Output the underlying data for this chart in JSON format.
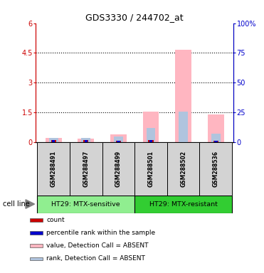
{
  "title": "GDS3330 / 244702_at",
  "samples": [
    "GSM288491",
    "GSM288497",
    "GSM288499",
    "GSM288501",
    "GSM288502",
    "GSM288536"
  ],
  "groups": [
    "HT29: MTX-sensitive",
    "HT29: MTX-resistant"
  ],
  "group_colors": [
    "#90ee90",
    "#32cd32"
  ],
  "ylim_left": [
    0,
    6
  ],
  "ylim_right": [
    0,
    100
  ],
  "yticks_left": [
    0,
    1.5,
    3,
    4.5,
    6
  ],
  "yticks_right": [
    0,
    25,
    50,
    75,
    100
  ],
  "ytick_labels_left": [
    "0",
    "1.5",
    "3",
    "4.5",
    "6"
  ],
  "ytick_labels_right": [
    "0",
    "25",
    "50",
    "75",
    "100%"
  ],
  "value_absent": [
    0.2,
    0.18,
    0.38,
    1.55,
    4.65,
    1.4
  ],
  "rank_absent": [
    0.22,
    0.2,
    0.28,
    0.72,
    1.52,
    0.42
  ],
  "count_bars": [
    0.1,
    0.1,
    0.05,
    0.1,
    0.0,
    0.06
  ],
  "percentile_bars": [
    0.1,
    0.1,
    0.05,
    0.1,
    0.0,
    0.06
  ],
  "color_value_absent": "#ffb6c1",
  "color_rank_absent": "#b0c4de",
  "color_count": "#cc0000",
  "color_percentile": "#0000cc",
  "legend_labels": [
    "count",
    "percentile rank within the sample",
    "value, Detection Call = ABSENT",
    "rank, Detection Call = ABSENT"
  ],
  "legend_colors": [
    "#cc0000",
    "#0000cc",
    "#ffb6c1",
    "#b0c4de"
  ],
  "cell_line_label": "cell line",
  "left_axis_color": "#cc0000",
  "right_axis_color": "#0000cc"
}
